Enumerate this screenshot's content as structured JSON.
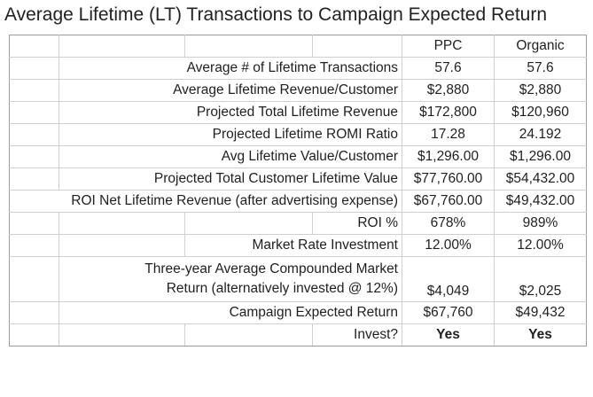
{
  "title": "Average Lifetime (LT) Transactions to Campaign Expected Return",
  "columns": {
    "ppc": "PPC",
    "organic": "Organic"
  },
  "rows": [
    {
      "label": "Average # of Lifetime Transactions",
      "ppc": "57.6",
      "organic": "57.6"
    },
    {
      "label": "Average Lifetime Revenue/Customer",
      "ppc": "$2,880",
      "organic": "$2,880"
    },
    {
      "label": "Projected Total Lifetime Revenue",
      "ppc": "$172,800",
      "organic": "$120,960"
    },
    {
      "label": "Projected Lifetime ROMI Ratio",
      "ppc": "17.28",
      "organic": "24.192"
    },
    {
      "label": "Avg Lifetime Value/Customer",
      "ppc": "$1,296.00",
      "organic": "$1,296.00"
    },
    {
      "label": "Projected Total Customer Lifetime Value",
      "ppc": "$77,760.00",
      "organic": "$54,432.00"
    },
    {
      "label": "ROI Net Lifetime Revenue (after advertising expense)",
      "ppc": "$67,760.00",
      "organic": "$49,432.00"
    },
    {
      "label": "ROI %",
      "ppc": "678%",
      "organic": "989%"
    },
    {
      "label": "Market Rate Investment",
      "ppc": "12.00%",
      "organic": "12.00%"
    },
    {
      "label_line1": "Three-year Average Compounded Market",
      "label_line2": "Return (alternatively invested @ 12%)",
      "ppc": "$4,049",
      "organic": "$2,025"
    },
    {
      "label": "Campaign Expected Return",
      "ppc": "$67,760",
      "organic": "$49,432"
    },
    {
      "label": "Invest?",
      "ppc": "Yes",
      "organic": "Yes"
    }
  ]
}
